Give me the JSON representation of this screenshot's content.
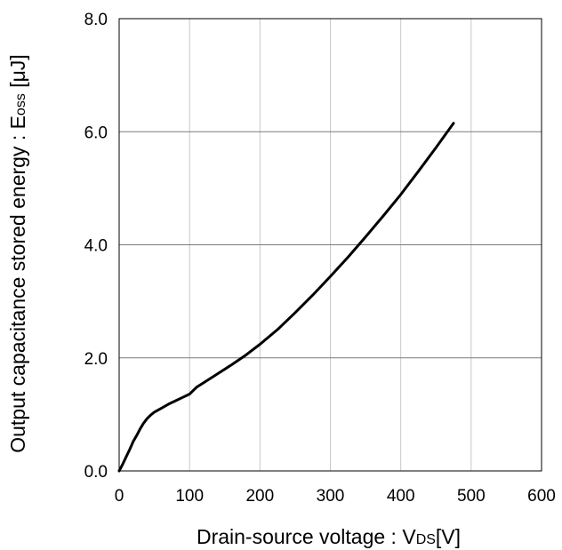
{
  "chart_data": {
    "type": "line",
    "x_ticks": [
      "0",
      "100",
      "200",
      "300",
      "400",
      "500",
      "600"
    ],
    "y_ticks": [
      "0.0",
      "2.0",
      "4.0",
      "6.0",
      "8.0"
    ],
    "xlim": [
      0,
      600
    ],
    "ylim": [
      0,
      8
    ],
    "x_tick_values": [
      0,
      100,
      200,
      300,
      400,
      500,
      600
    ],
    "y_tick_values": [
      0,
      2,
      4,
      6,
      8
    ],
    "grid": "on",
    "xlabel": {
      "main": "Drain-source voltage : V",
      "sub": "DS",
      "tail": "[V]"
    },
    "ylabel": {
      "main": "Output capacitance stored energy : E",
      "sub": "oss",
      "tail": " [μJ]"
    },
    "series": [
      {
        "x": [
          0,
          5,
          10,
          15,
          20,
          25,
          30,
          35,
          40,
          45,
          50,
          60,
          70,
          80,
          90,
          100,
          105,
          110,
          120,
          140,
          160,
          180,
          200,
          225,
          250,
          275,
          300,
          325,
          350,
          375,
          400,
          425,
          450,
          475
        ],
        "y": [
          0.0,
          0.12,
          0.25,
          0.38,
          0.52,
          0.63,
          0.75,
          0.85,
          0.93,
          0.99,
          1.04,
          1.11,
          1.18,
          1.24,
          1.3,
          1.36,
          1.42,
          1.48,
          1.56,
          1.72,
          1.88,
          2.05,
          2.24,
          2.5,
          2.8,
          3.11,
          3.44,
          3.78,
          4.14,
          4.51,
          4.89,
          5.3,
          5.72,
          6.15
        ],
        "color": "#000000"
      }
    ]
  }
}
